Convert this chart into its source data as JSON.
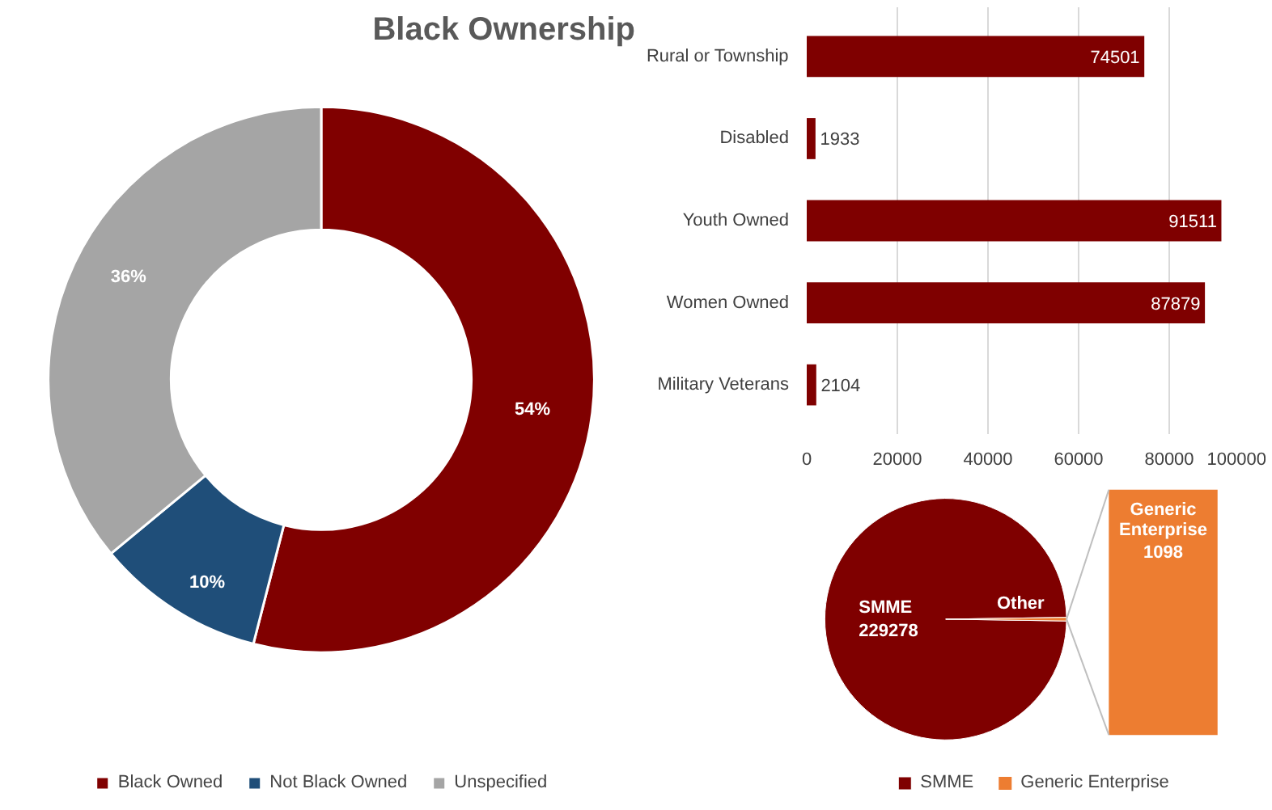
{
  "chart_data": [
    {
      "type": "donut",
      "title": "Black Ownership",
      "categories": [
        "Black Owned",
        "Not Black Owned",
        "Unspecified"
      ],
      "values": [
        54,
        10,
        36
      ],
      "colors": [
        "#800000",
        "#1f4e79",
        "#a5a5a5"
      ],
      "value_labels": [
        "54%",
        "10%",
        "36%"
      ],
      "legend": "bottom"
    },
    {
      "type": "bar",
      "orientation": "horizontal",
      "categories": [
        "Rural or Township",
        "Disabled",
        "Youth Owned",
        "Women Owned",
        "Military Veterans"
      ],
      "values": [
        74501,
        1933,
        91511,
        87879,
        2104
      ],
      "color": "#7f0000",
      "data_labels": true,
      "xlim": [
        0,
        100000
      ],
      "xticks": [
        0,
        20000,
        40000,
        60000,
        80000,
        100000
      ],
      "grid": "x"
    },
    {
      "type": "pie",
      "categories": [
        "SMME",
        "Generic Enterprise"
      ],
      "values": [
        229278,
        1098
      ],
      "colors": [
        "#7f0000",
        "#ed7d31"
      ],
      "data_labels": true,
      "annotations": [
        "Other"
      ],
      "legend": "bottom"
    }
  ]
}
